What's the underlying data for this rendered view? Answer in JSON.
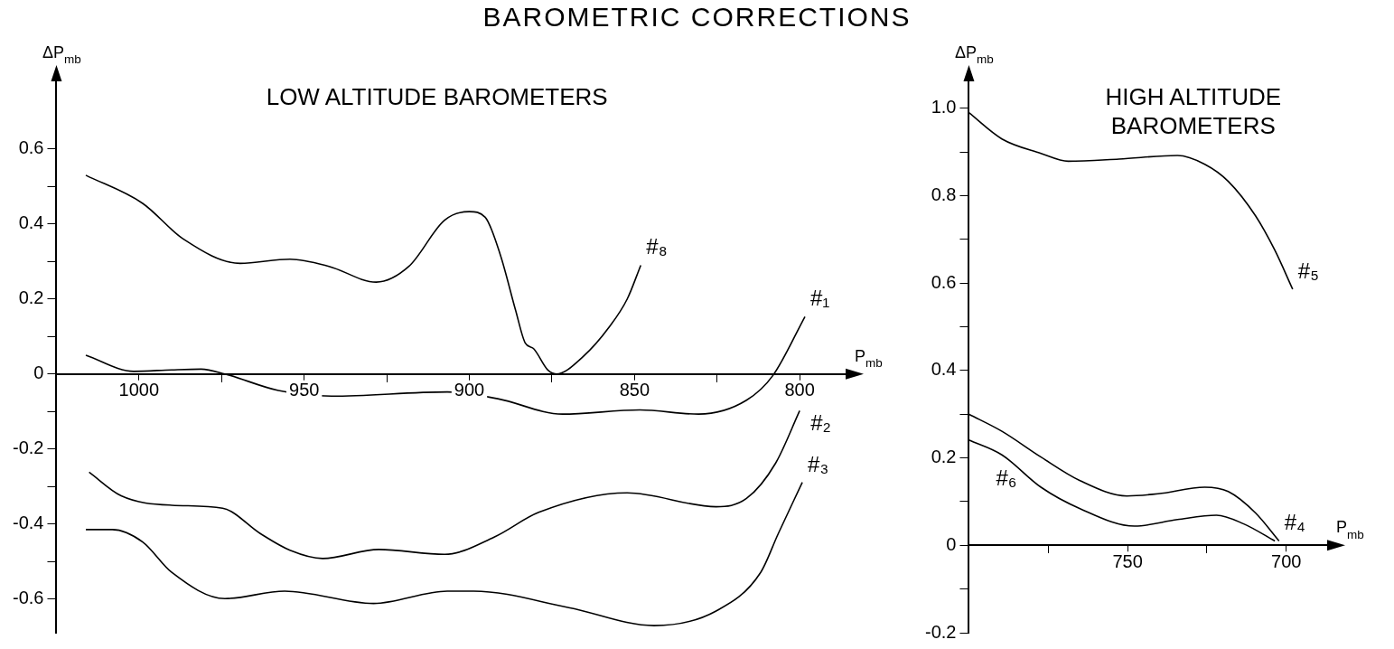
{
  "chart_data": [
    {
      "type": "line",
      "title": "BAROMETRIC CORRECTIONS",
      "subtitle": "LOW ALTITUDE BAROMETERS",
      "xlabel": "P$_{mb}$",
      "ylabel": "ΔP$_{mb}$",
      "xlim": [
        1025,
        785
      ],
      "xticks": [
        1000,
        {
          "value": 975,
          "label": null
        },
        950,
        {
          "value": 925,
          "label": null
        },
        900,
        {
          "value": 875,
          "label": null
        },
        850,
        {
          "value": 825,
          "label": null
        },
        800
      ],
      "ylim": [
        -0.69,
        0.79
      ],
      "yticks": [
        -0.6,
        {
          "value": -0.5,
          "label": null
        },
        -0.4,
        {
          "value": -0.3,
          "label": null
        },
        -0.2,
        {
          "value": -0.1,
          "label": null
        },
        0,
        {
          "value": 0.1,
          "label": null
        },
        0.2,
        {
          "value": 0.3,
          "label": null
        },
        0.4,
        {
          "value": 0.5,
          "label": null
        },
        0.6
      ],
      "series": [
        {
          "name": "#₈",
          "color": "#000000",
          "x": [
            1016.1,
            998.9,
            986.6,
            969.4,
            954.3,
            942.5,
            928.2,
            918.3,
            907.5,
            900,
            895.2,
            890.6,
            886,
            883.1,
            880.6,
            876.3,
            873.7,
            865.6,
            857.5,
            852.2,
            848.1
          ],
          "values": [
            0.53,
            0.455,
            0.36,
            0.295,
            0.306,
            0.287,
            0.245,
            0.287,
            0.41,
            0.433,
            0.418,
            0.317,
            0.17,
            0.083,
            0.068,
            0.011,
            0,
            0.046,
            0.127,
            0.2,
            0.29
          ]
        },
        {
          "name": "#₁",
          "color": "#000000",
          "x": [
            1016.1,
            1001.6,
            990.1,
            981.2,
            974,
            957.8,
            941.7,
            906.7,
            891.4,
            871.8,
            848.4,
            830.6,
            816.1,
            808.1,
            798.4
          ],
          "values": [
            0.05,
            0.007,
            0.011,
            0.013,
            0,
            -0.044,
            -0.059,
            -0.048,
            -0.066,
            -0.107,
            -0.096,
            -0.107,
            -0.07,
            -0.004,
            0.153
          ]
        },
        {
          "name": "#₂",
          "color": "#000000",
          "x": [
            1015.1,
            1005.4,
            990.1,
            974.7,
            963.2,
            954.3,
            944.4,
            927.4,
            907.5,
            892.5,
            879,
            852.2,
            825.3,
            816.1,
            807.3,
            800
          ],
          "values": [
            -0.262,
            -0.325,
            -0.35,
            -0.358,
            -0.426,
            -0.47,
            -0.492,
            -0.468,
            -0.481,
            -0.435,
            -0.369,
            -0.317,
            -0.354,
            -0.332,
            -0.238,
            -0.098
          ]
        },
        {
          "name": "#₃",
          "color": "#000000",
          "x": [
            1016.1,
            1008.1,
            998.9,
            990.1,
            974,
            955.9,
            929,
            906.7,
            898.7,
            869.9,
            844.1,
            825.3,
            811.8,
            806.5,
            799.2
          ],
          "values": [
            -0.415,
            -0.415,
            -0.448,
            -0.529,
            -0.599,
            -0.579,
            -0.612,
            -0.579,
            -0.579,
            -0.623,
            -0.671,
            -0.632,
            -0.529,
            -0.426,
            -0.289
          ]
        }
      ]
    },
    {
      "type": "line",
      "subtitle": "HIGH ALTITUDE BAROMETERS",
      "xlabel": "P$_{mb}$",
      "ylabel": "ΔP$_{mb}$",
      "xlim": [
        800,
        686
      ],
      "xticks": [
        {
          "value": 775,
          "label": null
        },
        750,
        {
          "value": 725,
          "label": null
        },
        700
      ],
      "ylim": [
        -0.2,
        1.07
      ],
      "yticks": [
        -0.2,
        {
          "value": -0.1,
          "label": null
        },
        0,
        {
          "value": 0.1,
          "label": null
        },
        0.2,
        {
          "value": 0.3,
          "label": null
        },
        0.4,
        {
          "value": 0.5,
          "label": null
        },
        0.6,
        {
          "value": 0.7,
          "label": null
        },
        0.8,
        {
          "value": 0.9,
          "label": null
        },
        {
          "value": 1,
          "label": "1.0"
        }
      ],
      "series": [
        {
          "name": "#₅",
          "color": "#000000",
          "x": [
            800,
            789.6,
            777.3,
            768.7,
            752.7,
            734.3,
            725.7,
            718.3,
            709.7,
            703.6,
            698
          ],
          "values": [
            0.99,
            0.93,
            0.897,
            0.879,
            0.884,
            0.892,
            0.872,
            0.833,
            0.754,
            0.675,
            0.586
          ]
        },
        {
          "name": "#₄",
          "color": "#000000",
          "x": [
            800,
            789.6,
            777.3,
            765,
            750.2,
            740.4,
            725.7,
            718.3,
            709.7,
            702.3
          ],
          "values": [
            0.3,
            0.261,
            0.202,
            0.148,
            0.113,
            0.118,
            0.133,
            0.123,
            0.074,
            0.01
          ]
        },
        {
          "name": "#₆",
          "color": "#000000",
          "x": [
            800,
            789.6,
            777.3,
            765,
            747.8,
            734.3,
            722,
            713.4,
            703.6
          ],
          "values": [
            0.241,
            0.207,
            0.133,
            0.084,
            0.044,
            0.059,
            0.069,
            0.049,
            0.01
          ]
        }
      ]
    }
  ]
}
